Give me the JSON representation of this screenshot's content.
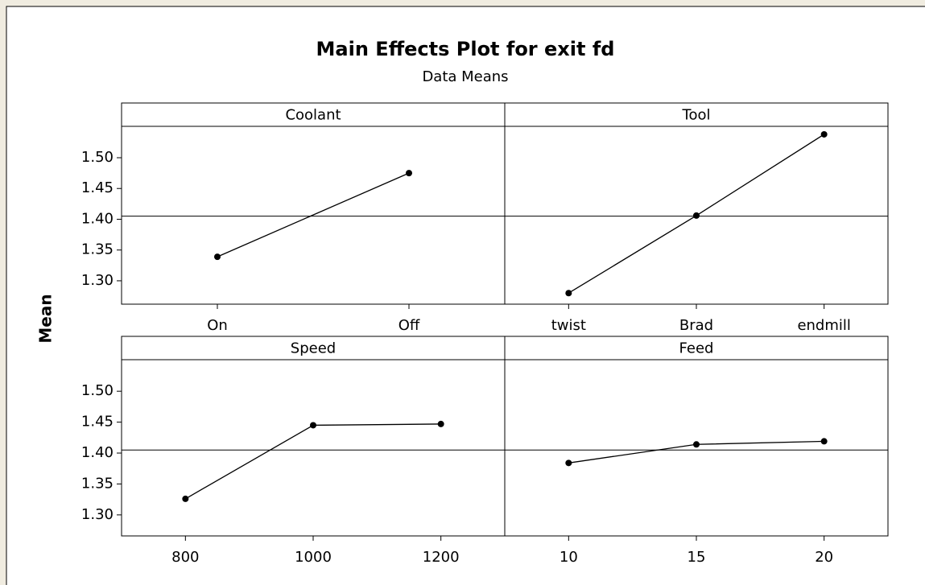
{
  "title": "Main Effects Plot for exit fd",
  "subtitle": "Data Means",
  "ylabel": "Mean",
  "mean_line": 1.405,
  "chart_data": [
    {
      "type": "line",
      "title": "Coolant",
      "categories": [
        "On",
        "Off"
      ],
      "values": [
        1.339,
        1.475
      ],
      "color": "#000000",
      "ylim": [
        1.262,
        1.551
      ],
      "yticks": [
        {
          "value": 1.3,
          "label": "1.30"
        },
        {
          "value": 1.35,
          "label": "1.35"
        },
        {
          "value": 1.4,
          "label": "1.40"
        },
        {
          "value": 1.45,
          "label": "1.45"
        },
        {
          "value": 1.5,
          "label": "1.50"
        }
      ]
    },
    {
      "type": "line",
      "title": "Tool",
      "categories": [
        "twist",
        "Brad",
        "endmill"
      ],
      "values": [
        1.28,
        1.406,
        1.538
      ],
      "color": "#000000",
      "ylim": [
        1.262,
        1.551
      ]
    },
    {
      "type": "line",
      "title": "Speed",
      "categories": [
        "800",
        "1000",
        "1200"
      ],
      "values": [
        1.326,
        1.445,
        1.447
      ],
      "color": "#000000",
      "ylim": [
        1.266,
        1.551
      ],
      "yticks": [
        {
          "value": 1.3,
          "label": "1.30"
        },
        {
          "value": 1.35,
          "label": "1.35"
        },
        {
          "value": 1.4,
          "label": "1.40"
        },
        {
          "value": 1.45,
          "label": "1.45"
        },
        {
          "value": 1.5,
          "label": "1.50"
        }
      ]
    },
    {
      "type": "line",
      "title": "Feed",
      "categories": [
        "10",
        "15",
        "20"
      ],
      "values": [
        1.384,
        1.414,
        1.419
      ],
      "color": "#000000",
      "ylim": [
        1.266,
        1.551
      ]
    }
  ]
}
